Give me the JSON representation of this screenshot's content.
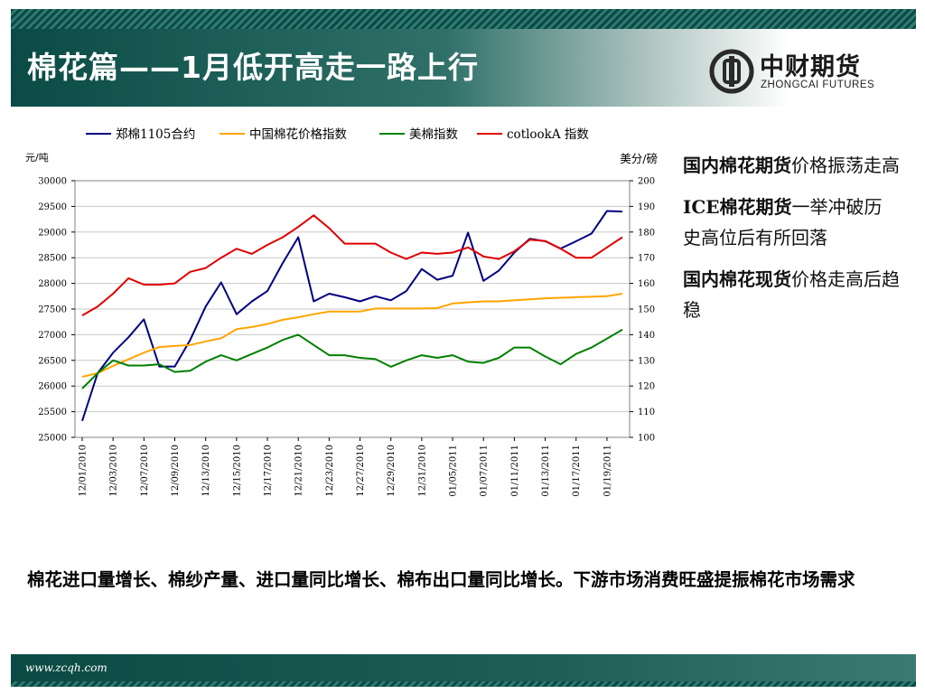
{
  "header": {
    "title": "棉花篇——1月低开高走一路上行"
  },
  "logo": {
    "cn": "中财期货",
    "en": "ZHONGCAI FUTURES",
    "icon": "zhongcai-logo-icon"
  },
  "chart_data": {
    "type": "line",
    "title": "",
    "legend_position": "top",
    "grid": true,
    "x": [
      "12/01/2010",
      "12/02/2010",
      "12/03/2010",
      "12/06/2010",
      "12/07/2010",
      "12/08/2010",
      "12/09/2010",
      "12/10/2010",
      "12/13/2010",
      "12/14/2010",
      "12/15/2010",
      "12/16/2010",
      "12/17/2010",
      "12/20/2010",
      "12/21/2010",
      "12/22/2010",
      "12/23/2010",
      "12/24/2010",
      "12/27/2010",
      "12/28/2010",
      "12/29/2010",
      "12/30/2010",
      "12/31/2010",
      "01/04/2011",
      "01/05/2011",
      "01/06/2011",
      "01/07/2011",
      "01/10/2011",
      "01/11/2011",
      "01/12/2011",
      "01/13/2011",
      "01/14/2011",
      "01/17/2011",
      "01/18/2011",
      "01/19/2011",
      "01/20/2011"
    ],
    "x_tick_labels": [
      "12/01/2010",
      "12/03/2010",
      "12/07/2010",
      "12/09/2010",
      "12/13/2010",
      "12/15/2010",
      "12/17/2010",
      "12/21/2010",
      "12/23/2010",
      "12/27/2010",
      "12/29/2010",
      "12/31/2010",
      "01/05/2011",
      "01/07/2011",
      "01/11/2011",
      "01/13/2011",
      "01/17/2011",
      "01/19/2011"
    ],
    "left_axis": {
      "label": "元/吨",
      "min": 25000,
      "max": 30000,
      "ticks": [
        "25000",
        "25500",
        "26000",
        "26500",
        "27000",
        "27500",
        "28000",
        "28500",
        "29000",
        "29500",
        "30000"
      ]
    },
    "right_axis": {
      "label": "美分/磅",
      "min": 100,
      "max": 200,
      "ticks": [
        "100",
        "110",
        "120",
        "130",
        "140",
        "150",
        "160",
        "170",
        "180",
        "190",
        "200"
      ]
    },
    "series": [
      {
        "name": "郑棉1105合约",
        "axis": "left",
        "color": "#000080",
        "values": [
          25320,
          26250,
          26650,
          26950,
          27300,
          26380,
          26380,
          26900,
          27550,
          28020,
          27400,
          27650,
          27850,
          28400,
          28900,
          27650,
          27800,
          27730,
          27650,
          27750,
          27670,
          27850,
          28280,
          28070,
          28150,
          28990,
          28050,
          28250,
          28600,
          28870,
          28820,
          28680,
          28820,
          28970,
          29410,
          29400
        ]
      },
      {
        "name": "中国棉花价格指数",
        "axis": "left",
        "color": "#ffa500",
        "values": [
          26180,
          26250,
          26390,
          26520,
          26650,
          26760,
          26780,
          26800,
          26870,
          26930,
          27110,
          27150,
          27210,
          27290,
          27340,
          27400,
          27450,
          27450,
          27450,
          27510,
          27510,
          27510,
          27510,
          27520,
          27610,
          27630,
          27650,
          27650,
          27670,
          27690,
          27710,
          27720,
          27730,
          27740,
          27750,
          27800
        ]
      },
      {
        "name": "美棉指数",
        "axis": "right",
        "color": "#008000",
        "values": [
          119,
          125,
          130,
          128,
          128,
          128.5,
          125.5,
          126,
          129.5,
          132,
          130,
          132.5,
          135,
          138,
          140,
          136,
          132,
          132,
          131,
          130.5,
          127.5,
          130,
          132,
          131,
          132,
          129.5,
          129,
          131,
          135,
          135,
          131.5,
          128.5,
          132.5,
          135,
          138.5,
          142
        ]
      },
      {
        "name": "cotlookA 指数",
        "axis": "right",
        "color": "#e00000",
        "values": [
          147.5,
          151,
          156,
          162,
          159.5,
          159.5,
          160,
          164.5,
          166,
          170,
          173.5,
          171.5,
          175,
          178,
          182,
          186.5,
          181.5,
          175.5,
          175.5,
          175.5,
          172,
          169.5,
          172,
          171.5,
          172,
          174,
          170.5,
          169.5,
          172.5,
          177,
          176.5,
          173.5,
          170,
          170,
          174,
          178
        ]
      }
    ]
  },
  "side_notes": [
    {
      "bold": "国内棉花期货",
      "rest": "价格振荡走高"
    },
    {
      "bold": "ICE棉花期货",
      "rest": "一举冲破历史高位后有所回落"
    },
    {
      "bold": "国内棉花现货",
      "rest": "价格走高后趋稳"
    }
  ],
  "bottom_text": "棉花进口量增长、棉纱产量、进口量同比增长、棉布出口量同比增长。下游市场消费旺盛提振棉花市场需求",
  "footer": {
    "url": "www.zcqh.com"
  }
}
